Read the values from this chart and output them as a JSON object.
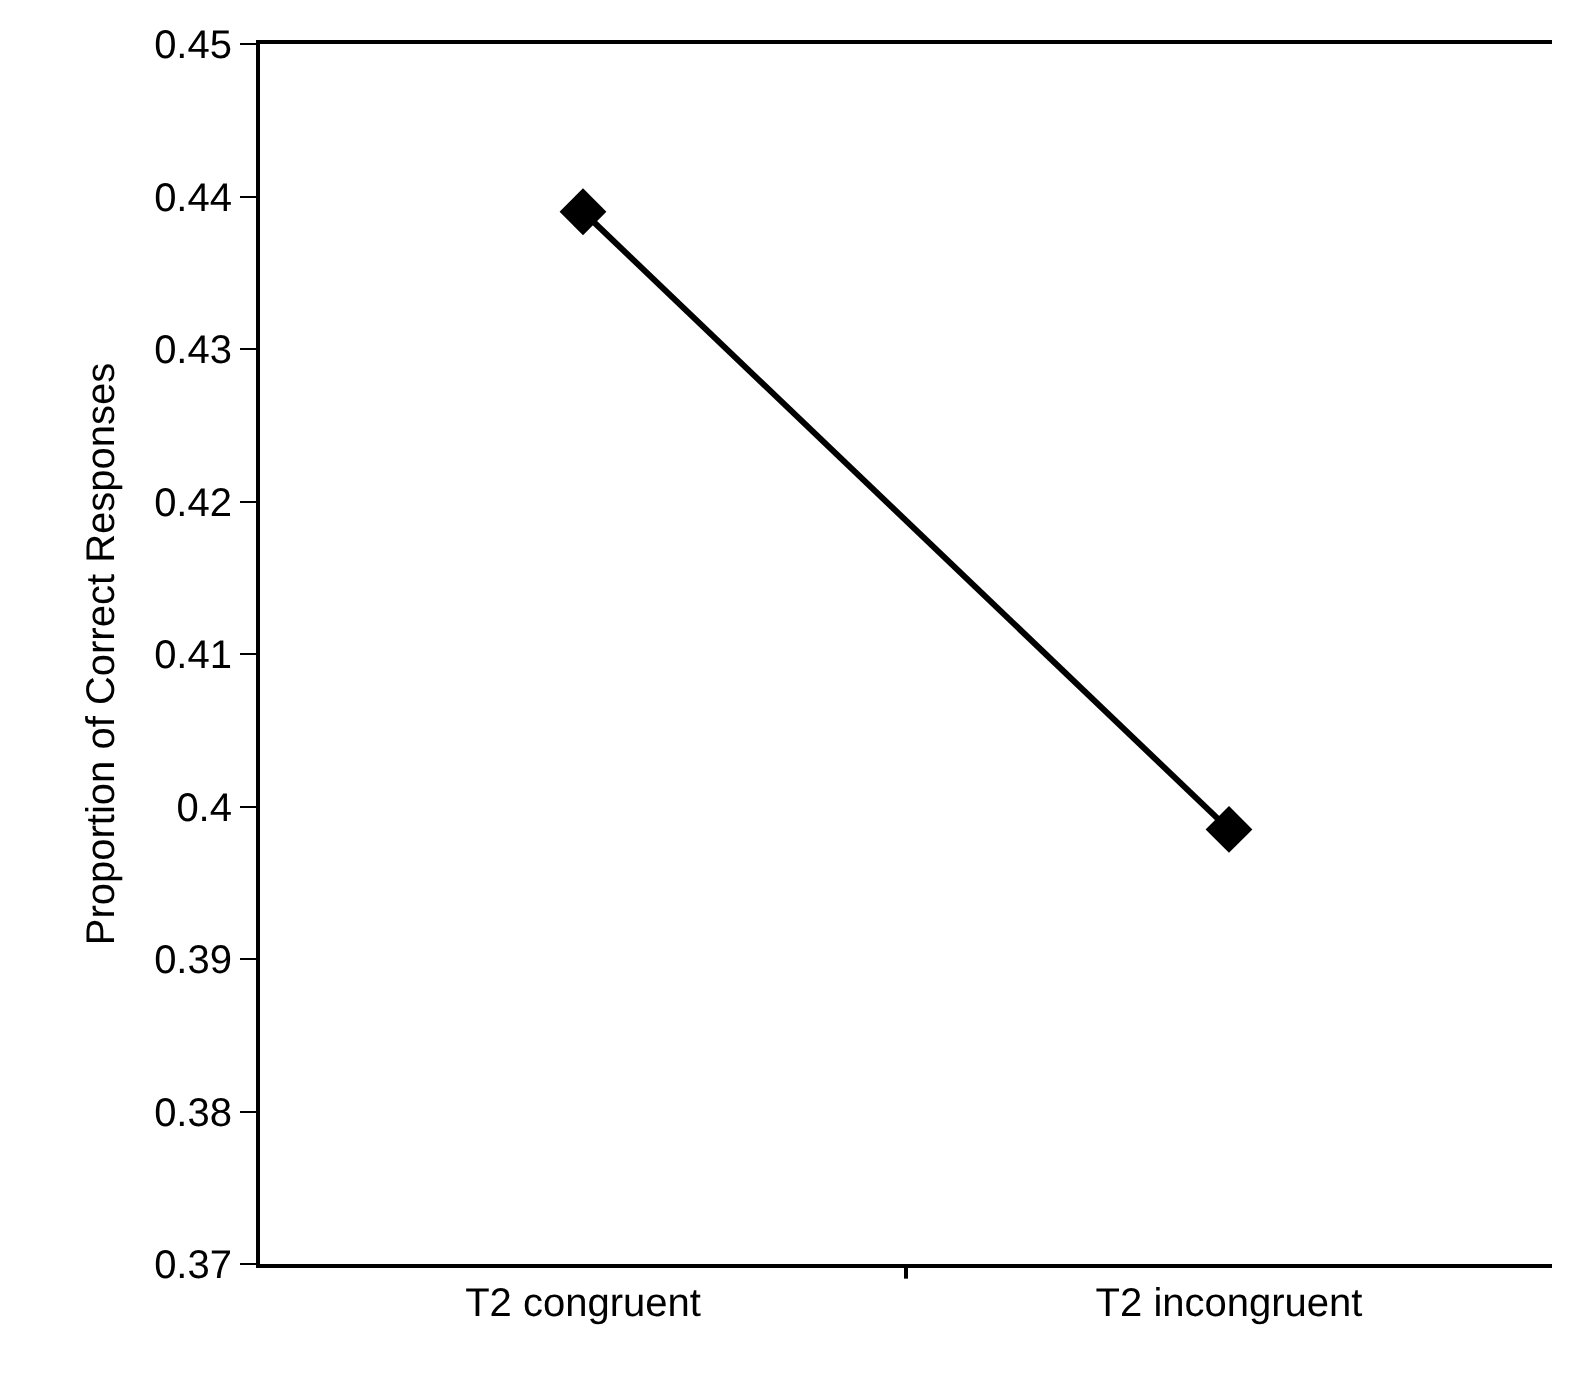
{
  "chart_data": {
    "type": "line",
    "ylabel": "Proportion of Correct Responses",
    "categories": [
      "T2 congruent",
      "T2 incongruent"
    ],
    "series": [
      {
        "color": "#000000",
        "values": [
          0.439,
          0.3985
        ]
      }
    ],
    "ylim": [
      0.37,
      0.45
    ],
    "yticks": [
      0.37,
      0.38,
      0.39,
      0.4,
      0.41,
      0.42,
      0.43,
      0.44,
      0.45
    ],
    "marker": "diamond",
    "line_style": "solid"
  }
}
